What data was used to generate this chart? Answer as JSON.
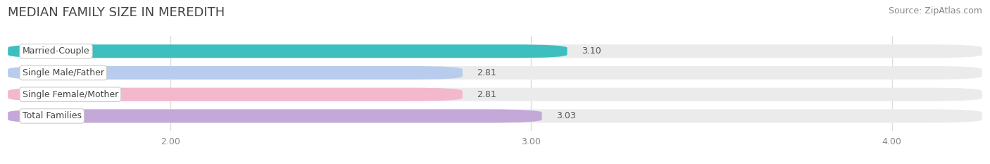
{
  "title": "MEDIAN FAMILY SIZE IN MEREDITH",
  "source": "Source: ZipAtlas.com",
  "categories": [
    "Married-Couple",
    "Single Male/Father",
    "Single Female/Mother",
    "Total Families"
  ],
  "values": [
    3.1,
    2.81,
    2.81,
    3.03
  ],
  "bar_colors": [
    "#3dbfbf",
    "#b8ccee",
    "#f4b8cc",
    "#c4a8d8"
  ],
  "xlim_data": [
    1.55,
    4.25
  ],
  "xmin": 0.0,
  "xmax": 1.0,
  "xticks": [
    2.0,
    3.0,
    4.0
  ],
  "xtick_labels": [
    "2.00",
    "3.00",
    "4.00"
  ],
  "data_min": 0.0,
  "data_max": 4.25,
  "bar_height": 0.62,
  "background_color": "#ffffff",
  "bar_bg_color": "#ebebeb",
  "grid_color": "#dddddd",
  "title_fontsize": 13,
  "label_fontsize": 9,
  "value_fontsize": 9,
  "source_fontsize": 9,
  "tick_fontsize": 9,
  "title_color": "#444444",
  "source_color": "#888888",
  "label_color": "#444444",
  "value_color": "#555555",
  "tick_color": "#888888"
}
